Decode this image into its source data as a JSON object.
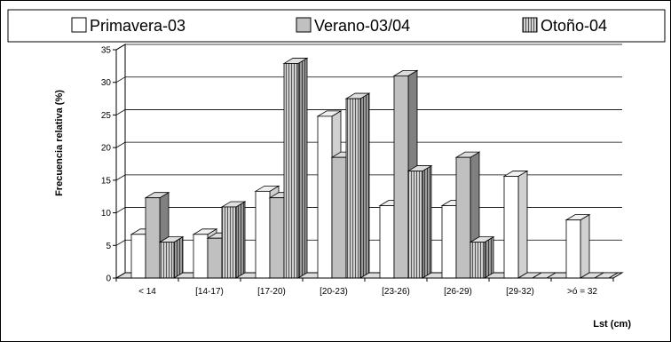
{
  "chart_data": {
    "type": "bar",
    "style": "3d-clustered",
    "categories": [
      "< 14",
      "[14-17)",
      "[17-20)",
      "[20-23)",
      "[23-26)",
      "[26-29)",
      "[29-32)",
      ">ó = 32"
    ],
    "series": [
      {
        "name": "Primavera-03",
        "color": "#ffffff",
        "values": [
          6.7,
          6.7,
          13.3,
          24.8,
          11.1,
          11.1,
          15.6,
          8.9
        ]
      },
      {
        "name": "Verano-03/04",
        "color": "#c0c0c0",
        "values": [
          12.3,
          6.1,
          12.3,
          18.5,
          31.0,
          18.5,
          0,
          0
        ]
      },
      {
        "name": "Otoño-04",
        "color": "#b4b4b4",
        "pattern": "vertical-stripes",
        "values": [
          5.5,
          10.9,
          32.9,
          27.5,
          16.4,
          5.5,
          0,
          0
        ]
      }
    ],
    "ylabel": "Frecuencia relativa (%)",
    "xlabel": "Lst (cm)",
    "ylim": [
      0,
      35
    ],
    "yticks": [
      0,
      5,
      10,
      15,
      20,
      25,
      30,
      35
    ],
    "gridlines": true,
    "legend": "top"
  }
}
